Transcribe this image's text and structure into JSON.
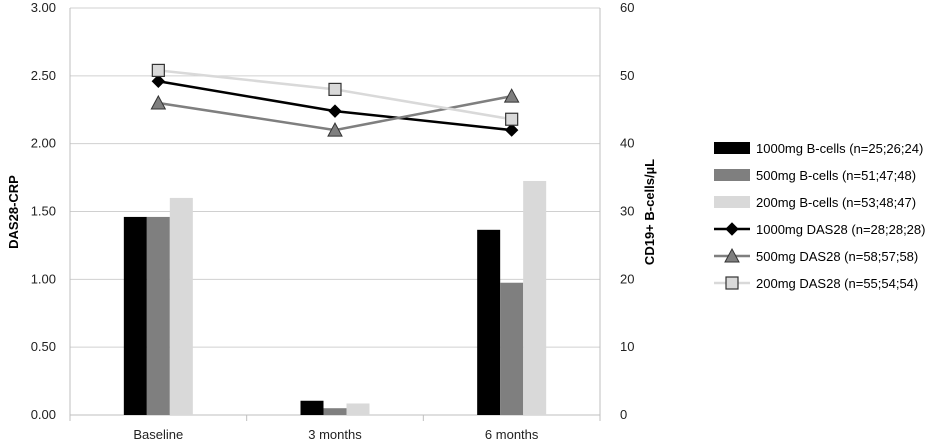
{
  "chart_data": {
    "type": "bar",
    "categories": [
      "Baseline",
      "3 months",
      "6 months"
    ],
    "bar_series": [
      {
        "name": "1000mg B-cells (n=25;26;24)",
        "values": [
          29.2,
          2.1,
          27.3
        ],
        "color": "#000000"
      },
      {
        "name": "500mg B-cells (n=51;47;48)",
        "values": [
          29.2,
          1.0,
          19.5
        ],
        "color": "#7f7f7f"
      },
      {
        "name": "200mg B-cells (n=53;48;47)",
        "values": [
          32.0,
          1.7,
          34.5
        ],
        "color": "#d9d9d9"
      }
    ],
    "line_series": [
      {
        "name": "1000mg DAS28 (n=28;28;28)",
        "values": [
          2.46,
          2.24,
          2.1
        ],
        "color": "#000000",
        "marker": "diamond"
      },
      {
        "name": "500mg DAS28 (n=58;57;58)",
        "values": [
          2.3,
          2.1,
          2.35
        ],
        "color": "#7f7f7f",
        "marker": "triangle"
      },
      {
        "name": "200mg DAS28 (n=55;54;54)",
        "values": [
          2.54,
          2.4,
          2.18
        ],
        "color": "#d9d9d9",
        "marker": "square"
      }
    ],
    "ylabel": "DAS28-CRP",
    "y2label": "CD19+ B-cells/µL",
    "ylim": [
      0,
      3.0
    ],
    "y2lim": [
      0,
      60
    ],
    "yticks": [
      "0.00",
      "0.50",
      "1.00",
      "1.50",
      "2.00",
      "2.50",
      "3.00"
    ],
    "y2ticks": [
      "0",
      "10",
      "20",
      "30",
      "40",
      "50",
      "60"
    ],
    "grid": true,
    "legend_position": "right"
  }
}
